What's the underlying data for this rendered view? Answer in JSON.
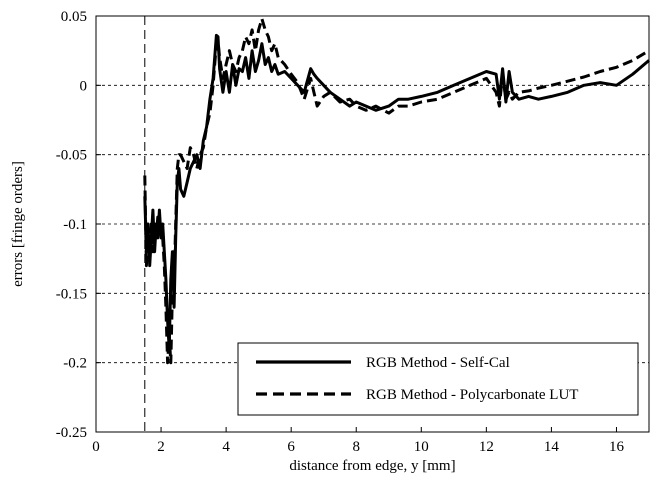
{
  "chart_data": {
    "type": "line",
    "title": "",
    "xlabel": "distance from edge, y [mm]",
    "ylabel": "errors [fringe orders]",
    "xlim": [
      0,
      17
    ],
    "ylim": [
      -0.25,
      0.05
    ],
    "xticks": [
      0,
      2,
      4,
      6,
      8,
      10,
      12,
      14,
      16
    ],
    "yticks": [
      -0.25,
      -0.2,
      -0.15,
      -0.1,
      -0.05,
      0,
      0.05
    ],
    "xtick_labels": [
      "0",
      "2",
      "4",
      "6",
      "8",
      "10",
      "12",
      "14",
      "16"
    ],
    "ytick_labels": [
      "-0.25",
      "-0.2",
      "-0.15",
      "-0.1",
      "-0.05",
      "0",
      "0.05"
    ],
    "grid": "horizontal-dashed",
    "reference_line_x": 1.5,
    "legend_position": "bottom-right",
    "series": [
      {
        "name": "RGB Method - Self-Cal",
        "style": "solid",
        "x": [
          1.5,
          1.55,
          1.6,
          1.65,
          1.7,
          1.75,
          1.8,
          1.85,
          1.9,
          1.95,
          2.0,
          2.05,
          2.1,
          2.15,
          2.2,
          2.25,
          2.3,
          2.35,
          2.4,
          2.45,
          2.5,
          2.55,
          2.6,
          2.7,
          2.8,
          2.9,
          3.0,
          3.1,
          3.2,
          3.3,
          3.4,
          3.5,
          3.6,
          3.65,
          3.7,
          3.75,
          3.8,
          3.9,
          4.0,
          4.1,
          4.2,
          4.3,
          4.4,
          4.5,
          4.6,
          4.7,
          4.8,
          4.9,
          5.0,
          5.1,
          5.2,
          5.3,
          5.4,
          5.5,
          5.6,
          5.8,
          6.0,
          6.2,
          6.4,
          6.6,
          6.7,
          6.8,
          7.0,
          7.2,
          7.5,
          7.8,
          8.0,
          8.3,
          8.6,
          9.0,
          9.3,
          9.6,
          10.0,
          10.5,
          11.0,
          11.5,
          12.0,
          12.3,
          12.4,
          12.5,
          12.6,
          12.7,
          12.8,
          13.0,
          13.3,
          13.6,
          14.0,
          14.5,
          15.0,
          15.5,
          16.0,
          16.5,
          17.0
        ],
        "values": [
          -0.08,
          -0.12,
          -0.1,
          -0.13,
          -0.11,
          -0.09,
          -0.12,
          -0.1,
          -0.11,
          -0.09,
          -0.11,
          -0.1,
          -0.12,
          -0.14,
          -0.17,
          -0.19,
          -0.14,
          -0.12,
          -0.16,
          -0.11,
          -0.07,
          -0.06,
          -0.075,
          -0.08,
          -0.07,
          -0.06,
          -0.055,
          -0.05,
          -0.06,
          -0.04,
          -0.03,
          -0.01,
          0.005,
          0.02,
          0.036,
          0.035,
          0.012,
          -0.005,
          0.01,
          -0.005,
          0.015,
          0.0,
          0.012,
          0.01,
          0.02,
          0.005,
          0.025,
          0.01,
          0.018,
          0.03,
          0.015,
          0.02,
          0.01,
          0.015,
          0.008,
          0.01,
          0.005,
          0.0,
          -0.005,
          0.012,
          0.008,
          0.005,
          0.0,
          -0.005,
          -0.01,
          -0.015,
          -0.012,
          -0.015,
          -0.018,
          -0.015,
          -0.01,
          -0.01,
          -0.008,
          -0.005,
          0.0,
          0.005,
          0.01,
          0.008,
          -0.01,
          0.012,
          -0.012,
          0.01,
          -0.005,
          -0.01,
          -0.008,
          -0.01,
          -0.008,
          -0.005,
          0.0,
          0.002,
          0.0,
          0.008,
          0.018
        ]
      },
      {
        "name": "RGB Method - Polycarbonate LUT",
        "style": "dashed",
        "x": [
          1.5,
          1.55,
          1.6,
          1.65,
          1.7,
          1.75,
          1.8,
          1.85,
          1.9,
          1.95,
          2.0,
          2.05,
          2.1,
          2.15,
          2.2,
          2.25,
          2.3,
          2.35,
          2.4,
          2.45,
          2.5,
          2.55,
          2.6,
          2.7,
          2.8,
          2.9,
          3.0,
          3.1,
          3.2,
          3.3,
          3.4,
          3.5,
          3.6,
          3.65,
          3.7,
          3.75,
          3.8,
          3.9,
          4.0,
          4.1,
          4.2,
          4.3,
          4.4,
          4.5,
          4.6,
          4.7,
          4.8,
          4.9,
          5.0,
          5.1,
          5.2,
          5.3,
          5.4,
          5.5,
          5.6,
          5.8,
          6.0,
          6.2,
          6.4,
          6.6,
          6.7,
          6.8,
          7.0,
          7.2,
          7.5,
          7.8,
          8.0,
          8.3,
          8.6,
          9.0,
          9.3,
          9.6,
          10.0,
          10.5,
          11.0,
          11.5,
          12.0,
          12.3,
          12.4,
          12.5,
          12.6,
          12.7,
          12.8,
          13.0,
          13.3,
          13.6,
          14.0,
          14.5,
          15.0,
          15.5,
          16.0,
          16.5,
          17.0
        ],
        "values": [
          -0.065,
          -0.13,
          -0.11,
          -0.12,
          -0.1,
          -0.12,
          -0.1,
          -0.11,
          -0.095,
          -0.1,
          -0.105,
          -0.11,
          -0.13,
          -0.16,
          -0.2,
          -0.18,
          -0.2,
          -0.15,
          -0.14,
          -0.1,
          -0.06,
          -0.05,
          -0.05,
          -0.055,
          -0.06,
          -0.045,
          -0.05,
          -0.06,
          -0.05,
          -0.045,
          -0.03,
          -0.02,
          0.0,
          0.015,
          0.03,
          0.032,
          0.02,
          0.005,
          0.015,
          0.025,
          0.015,
          0.01,
          0.02,
          0.025,
          0.035,
          0.03,
          0.04,
          0.025,
          0.04,
          0.048,
          0.04,
          0.035,
          0.025,
          0.03,
          0.02,
          0.015,
          0.008,
          0.002,
          -0.01,
          0.005,
          -0.005,
          -0.015,
          -0.008,
          -0.005,
          -0.012,
          -0.01,
          -0.015,
          -0.018,
          -0.015,
          -0.02,
          -0.015,
          -0.015,
          -0.012,
          -0.01,
          -0.005,
          0.0,
          0.005,
          -0.005,
          -0.015,
          0.008,
          -0.01,
          -0.005,
          -0.01,
          -0.005,
          -0.004,
          -0.002,
          0.0,
          0.003,
          0.006,
          0.01,
          0.013,
          0.018,
          0.025
        ]
      }
    ]
  }
}
